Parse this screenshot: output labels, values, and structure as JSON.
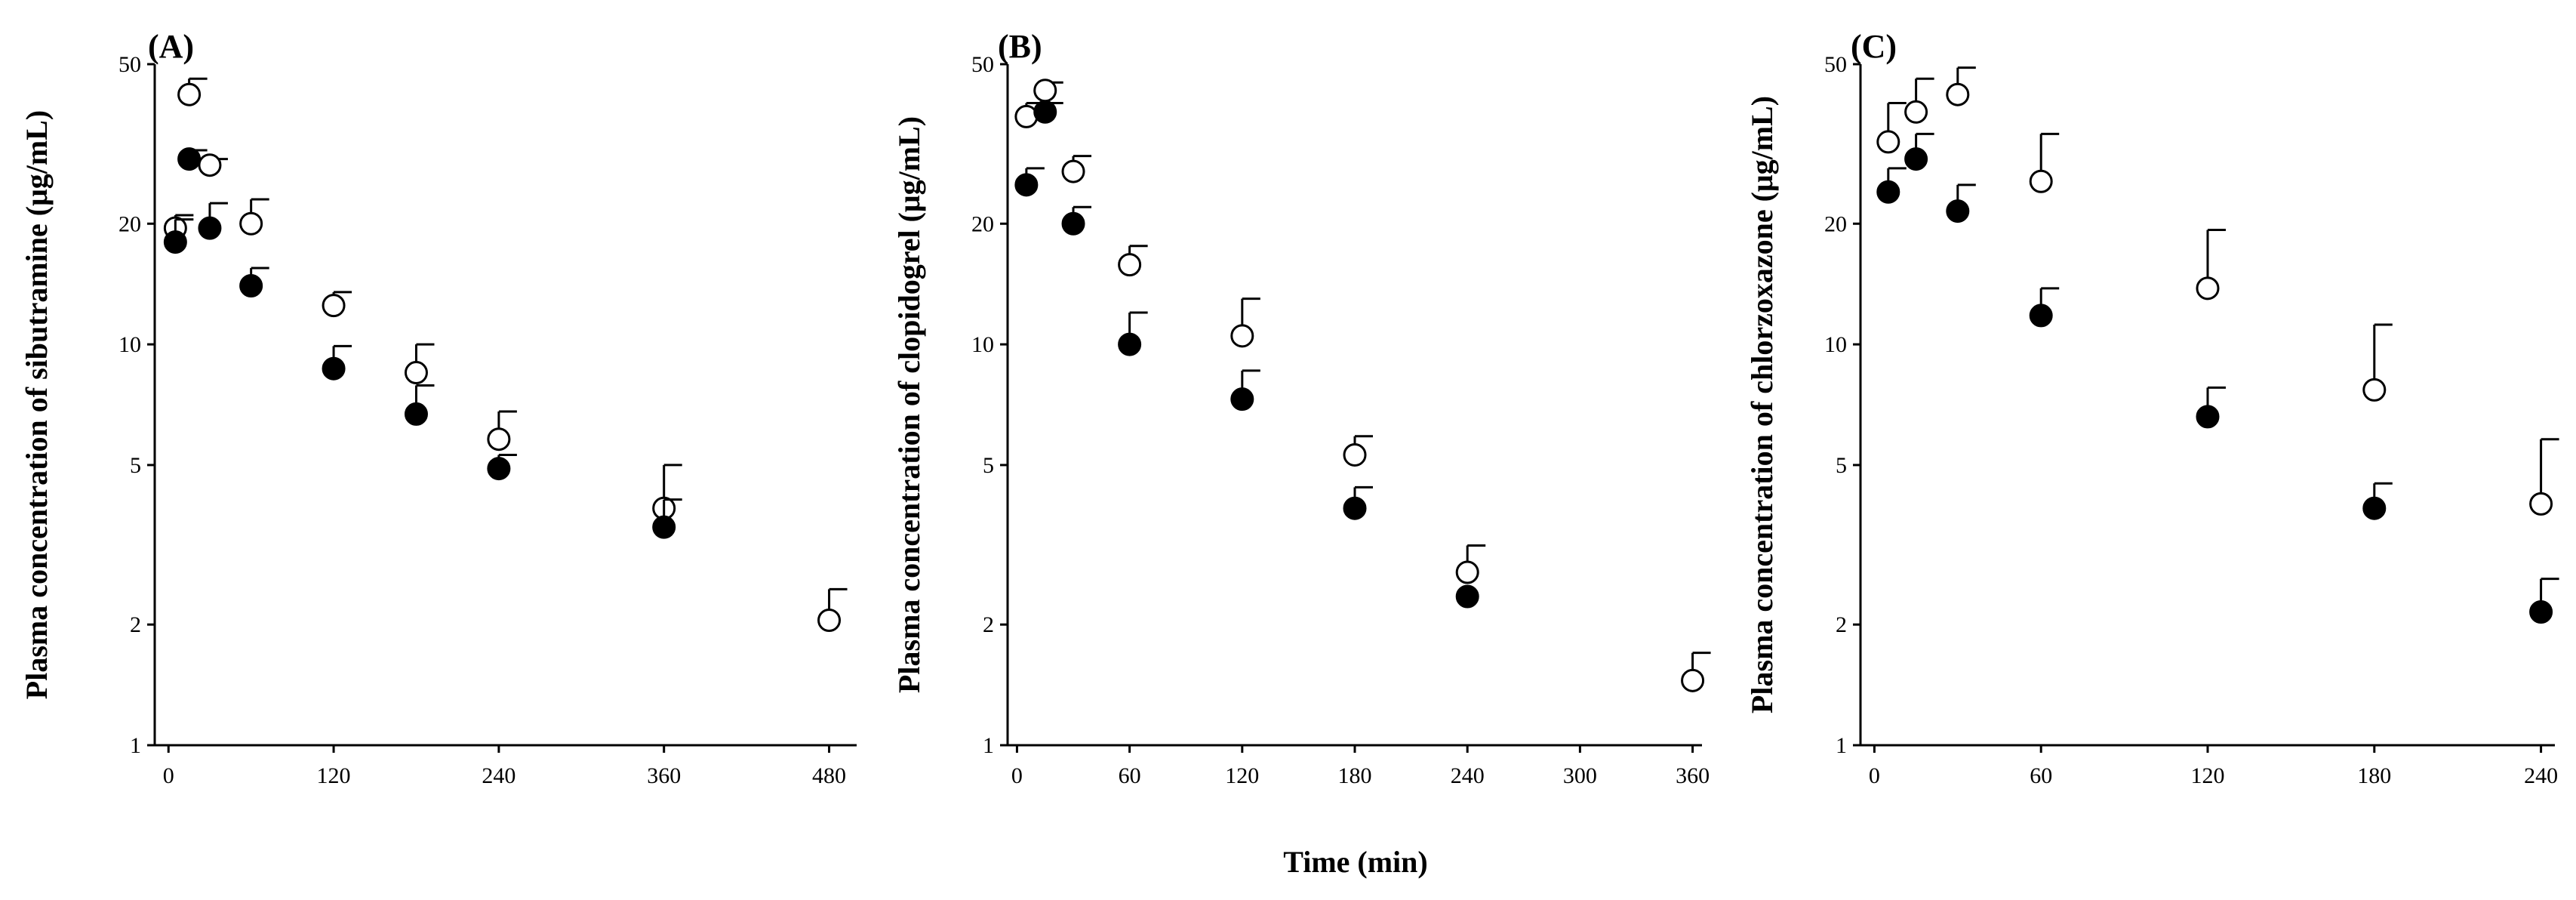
{
  "figure": {
    "common_xlabel": "Time (min)"
  },
  "chart_data": [
    {
      "type": "scatter",
      "panel_label": "(A)",
      "title": "",
      "xlabel": "",
      "ylabel": "Plasma concentration of sibutramine (μg/mL)",
      "yscale": "log",
      "xlim": [
        -10,
        500
      ],
      "ylim": [
        1,
        50
      ],
      "xticks": [
        0,
        120,
        240,
        360,
        480
      ],
      "yticks": [
        1,
        2,
        5,
        10,
        20,
        50
      ],
      "series": [
        {
          "name": "open",
          "marker": "open-circle",
          "x": [
            5,
            15,
            30,
            60,
            120,
            180,
            240,
            360,
            480
          ],
          "y": [
            19.5,
            42,
            28,
            20,
            12.5,
            8.5,
            5.8,
            3.9,
            2.05
          ],
          "err": [
            1.5,
            4,
            1,
            3,
            1,
            1.5,
            1,
            1.1,
            0.4
          ]
        },
        {
          "name": "filled",
          "marker": "filled-circle",
          "x": [
            5,
            15,
            30,
            60,
            120,
            180,
            240,
            360
          ],
          "y": [
            18,
            29,
            19.5,
            14,
            8.7,
            6.7,
            4.9,
            3.5
          ],
          "err": [
            2.5,
            1.5,
            3,
            1.5,
            1.2,
            1.2,
            0.4,
            0.6
          ]
        }
      ]
    },
    {
      "type": "scatter",
      "panel_label": "(B)",
      "title": "",
      "xlabel": "",
      "ylabel": "Plasma concentration of clopidogrel (μg/mL)",
      "yscale": "log",
      "xlim": [
        -5,
        365
      ],
      "ylim": [
        1,
        50
      ],
      "xticks": [
        0,
        60,
        120,
        180,
        240,
        300,
        360
      ],
      "yticks": [
        1,
        2,
        5,
        10,
        20,
        50
      ],
      "series": [
        {
          "name": "open",
          "marker": "open-circle",
          "x": [
            5,
            15,
            30,
            60,
            120,
            180,
            240,
            360
          ],
          "y": [
            37,
            43,
            27,
            15.8,
            10.5,
            5.3,
            2.7,
            1.45
          ],
          "err": [
            3,
            2,
            2.5,
            1.8,
            2.5,
            0.6,
            0.45,
            0.25
          ]
        },
        {
          "name": "filled",
          "marker": "filled-circle",
          "x": [
            5,
            15,
            30,
            60,
            120,
            180,
            240
          ],
          "y": [
            25,
            38,
            20,
            10,
            7.3,
            3.9,
            2.35
          ],
          "err": [
            2.5,
            2,
            2,
            2,
            1.3,
            0.5,
            0
          ]
        }
      ]
    },
    {
      "type": "scatter",
      "panel_label": "(C)",
      "title": "",
      "xlabel": "",
      "ylabel": "Plasma concentration of chlorzoxazone (μg/mL)",
      "yscale": "log",
      "xlim": [
        -5,
        245
      ],
      "ylim": [
        1,
        50
      ],
      "xticks": [
        0,
        60,
        120,
        180,
        240
      ],
      "yticks": [
        1,
        2,
        5,
        10,
        20,
        50
      ],
      "series": [
        {
          "name": "open",
          "marker": "open-circle",
          "x": [
            5,
            15,
            30,
            60,
            120,
            180,
            240
          ],
          "y": [
            32,
            38,
            42,
            25.5,
            13.8,
            7.7,
            4
          ],
          "err": [
            8,
            8,
            7,
            8,
            5.5,
            3.5,
            1.8
          ]
        },
        {
          "name": "filled",
          "marker": "filled-circle",
          "x": [
            5,
            15,
            30,
            60,
            120,
            180,
            240
          ],
          "y": [
            24,
            29,
            21.5,
            11.8,
            6.6,
            3.9,
            2.15
          ],
          "err": [
            3.5,
            4.5,
            3.5,
            2,
            1.2,
            0.6,
            0.45
          ]
        }
      ]
    }
  ]
}
